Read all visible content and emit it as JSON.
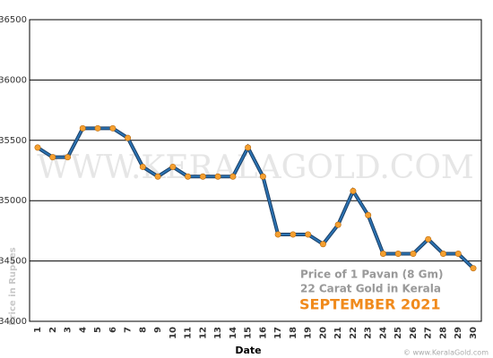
{
  "chart_data": {
    "type": "line",
    "categories": [
      "1",
      "2",
      "3",
      "4",
      "5",
      "6",
      "7",
      "8",
      "9",
      "10",
      "11",
      "12",
      "13",
      "14",
      "15",
      "16",
      "17",
      "18",
      "19",
      "20",
      "21",
      "22",
      "23",
      "24",
      "25",
      "26",
      "27",
      "28",
      "29",
      "30"
    ],
    "values": [
      35440,
      35360,
      35360,
      35600,
      35600,
      35600,
      35520,
      35280,
      35200,
      35280,
      35200,
      35200,
      35200,
      35200,
      35440,
      35200,
      34720,
      34720,
      34720,
      34640,
      34800,
      35080,
      34880,
      34560,
      34560,
      34560,
      34680,
      34560,
      34560,
      34440
    ],
    "color": "#2b73b3",
    "marker_color": "#f5a030",
    "ylim": [
      34000,
      36500
    ],
    "yticks": [
      34000,
      34500,
      35000,
      35500,
      36000,
      36500
    ],
    "grid": true,
    "xlabel": "Date",
    "ylabel": "Price in Rupees",
    "legend_lines": [
      "Price of 1 Pavan (8 Gm)",
      "22 Carat Gold in Kerala"
    ],
    "legend_title": "SEPTEMBER 2021",
    "watermark": "WWW.KERALAGOLD.COM",
    "footer": "© www.KeralaGold.com"
  }
}
